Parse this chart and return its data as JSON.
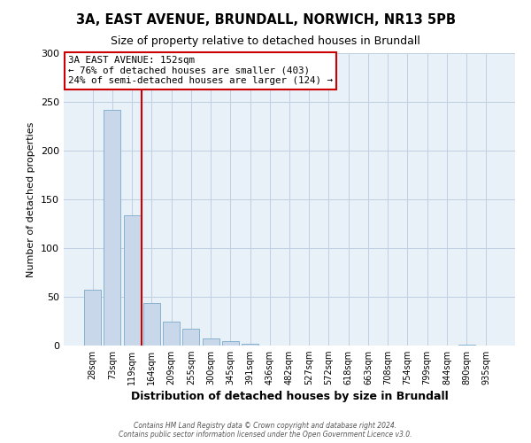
{
  "title1": "3A, EAST AVENUE, BRUNDALL, NORWICH, NR13 5PB",
  "title2": "Size of property relative to detached houses in Brundall",
  "xlabel": "Distribution of detached houses by size in Brundall",
  "ylabel": "Number of detached properties",
  "bin_labels": [
    "28sqm",
    "73sqm",
    "119sqm",
    "164sqm",
    "209sqm",
    "255sqm",
    "300sqm",
    "345sqm",
    "391sqm",
    "436sqm",
    "482sqm",
    "527sqm",
    "572sqm",
    "618sqm",
    "663sqm",
    "708sqm",
    "754sqm",
    "799sqm",
    "844sqm",
    "890sqm",
    "935sqm"
  ],
  "bin_values": [
    57,
    242,
    134,
    44,
    25,
    17,
    7,
    5,
    2,
    0,
    0,
    0,
    0,
    0,
    0,
    0,
    0,
    0,
    0,
    1,
    0
  ],
  "bar_color": "#c8d8ea",
  "bar_edge_color": "#7aaac8",
  "vline_color": "#cc0000",
  "annotation_text": "3A EAST AVENUE: 152sqm\n← 76% of detached houses are smaller (403)\n24% of semi-detached houses are larger (124) →",
  "annotation_box_color": "#ffffff",
  "annotation_box_edge": "#cc0000",
  "ylim": [
    0,
    300
  ],
  "yticks": [
    0,
    50,
    100,
    150,
    200,
    250,
    300
  ],
  "footer1": "Contains HM Land Registry data © Crown copyright and database right 2024.",
  "footer2": "Contains public sector information licensed under the Open Government Licence v3.0.",
  "bg_color": "#ffffff",
  "plot_bg_color": "#e8f0f8",
  "grid_color": "#c0d0e0",
  "title1_fontsize": 10.5,
  "title2_fontsize": 9
}
